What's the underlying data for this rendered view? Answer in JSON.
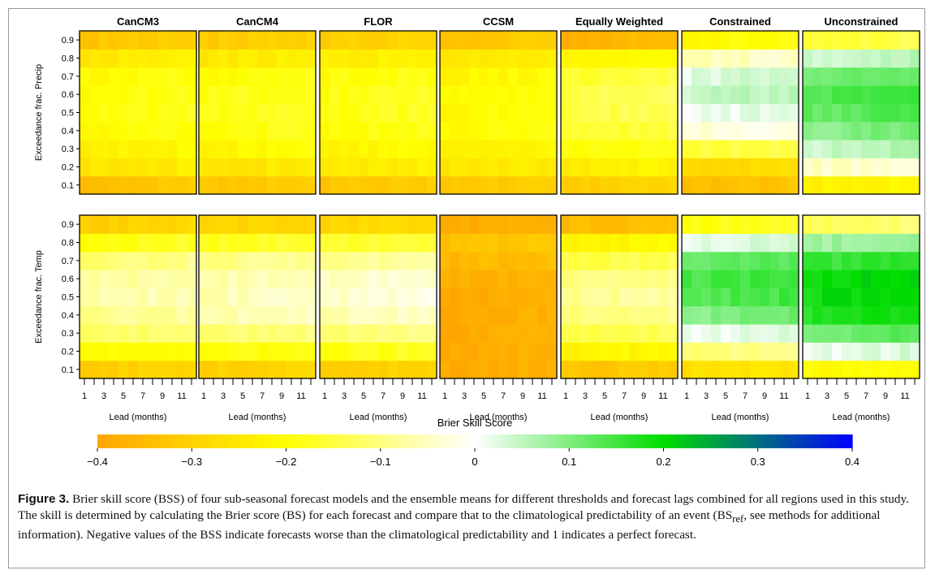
{
  "chart_data": {
    "type": "heatmap",
    "panel_titles": [
      "CanCM3",
      "CanCM4",
      "FLOR",
      "CCSM",
      "Equally Weighted",
      "Constrained",
      "Unconstrained"
    ],
    "row_ylabels": [
      "Exceedance frac. Precip",
      "Exceedance frac. Temp"
    ],
    "xlabel": "Lead (months)",
    "x_tick_labels": [
      "1",
      "3",
      "5",
      "7",
      "9",
      "11"
    ],
    "x_values": [
      1,
      2,
      3,
      4,
      5,
      6,
      7,
      8,
      9,
      10,
      11,
      12
    ],
    "y_tick_labels": [
      "0.1",
      "0.2",
      "0.3",
      "0.4",
      "0.5",
      "0.6",
      "0.7",
      "0.8",
      "0.9"
    ],
    "y_values": [
      0.1,
      0.2,
      0.3,
      0.4,
      0.5,
      0.6,
      0.7,
      0.8,
      0.9
    ],
    "colorbar": {
      "title": "Brier Skill Score",
      "range": [
        -0.4,
        0.4
      ],
      "tick_labels": [
        "−0.4",
        "−0.3",
        "−0.2",
        "−0.1",
        "0",
        "0.1",
        "0.2",
        "0.3",
        "0.4"
      ],
      "tick_values": [
        -0.4,
        -0.3,
        -0.2,
        -0.1,
        0,
        0.1,
        0.2,
        0.3,
        0.4
      ],
      "colors": [
        "#ffa500",
        "#ffff00",
        "#ffffff",
        "#00dd00",
        "#0000ff"
      ]
    },
    "panels": [
      {
        "model": "CanCM3",
        "variable": "Precip",
        "values_by_threshold": [
          -0.33,
          -0.25,
          -0.22,
          -0.2,
          -0.19,
          -0.19,
          -0.2,
          -0.24,
          -0.32
        ]
      },
      {
        "model": "CanCM4",
        "variable": "Precip",
        "values_by_threshold": [
          -0.32,
          -0.25,
          -0.21,
          -0.19,
          -0.18,
          -0.18,
          -0.2,
          -0.24,
          -0.31
        ]
      },
      {
        "model": "FLOR",
        "variable": "Precip",
        "values_by_threshold": [
          -0.32,
          -0.24,
          -0.21,
          -0.19,
          -0.18,
          -0.18,
          -0.19,
          -0.23,
          -0.3
        ]
      },
      {
        "model": "CCSM",
        "variable": "Precip",
        "values_by_threshold": [
          -0.32,
          -0.25,
          -0.22,
          -0.2,
          -0.2,
          -0.2,
          -0.21,
          -0.25,
          -0.32
        ]
      },
      {
        "model": "Equally Weighted",
        "variable": "Precip",
        "values_by_threshold": [
          -0.3,
          -0.23,
          -0.19,
          -0.16,
          -0.14,
          -0.14,
          -0.16,
          -0.22,
          -0.36
        ]
      },
      {
        "model": "Constrained",
        "variable": "Precip",
        "values_by_threshold": [
          -0.34,
          -0.28,
          -0.15,
          -0.03,
          0.02,
          0.05,
          0.03,
          -0.05,
          -0.2
        ]
      },
      {
        "model": "Unconstrained",
        "variable": "Precip",
        "values_by_threshold": [
          -0.22,
          -0.04,
          0.05,
          0.1,
          0.13,
          0.14,
          0.12,
          0.05,
          -0.15
        ]
      },
      {
        "model": "CanCM3",
        "variable": "Temp",
        "values_by_threshold": [
          -0.3,
          -0.2,
          -0.12,
          -0.08,
          -0.06,
          -0.07,
          -0.1,
          -0.18,
          -0.3
        ]
      },
      {
        "model": "CanCM4",
        "variable": "Temp",
        "values_by_threshold": [
          -0.3,
          -0.19,
          -0.11,
          -0.06,
          -0.05,
          -0.06,
          -0.09,
          -0.17,
          -0.29
        ]
      },
      {
        "model": "FLOR",
        "variable": "Temp",
        "values_by_threshold": [
          -0.3,
          -0.18,
          -0.1,
          -0.05,
          -0.03,
          -0.04,
          -0.08,
          -0.16,
          -0.28
        ]
      },
      {
        "model": "CCSM",
        "variable": "Temp",
        "values_by_threshold": [
          -0.38,
          -0.38,
          -0.38,
          -0.38,
          -0.38,
          -0.37,
          -0.35,
          -0.33,
          -0.38
        ]
      },
      {
        "model": "Equally Weighted",
        "variable": "Temp",
        "values_by_threshold": [
          -0.32,
          -0.22,
          -0.14,
          -0.1,
          -0.08,
          -0.1,
          -0.14,
          -0.22,
          -0.34
        ]
      },
      {
        "model": "Constrained",
        "variable": "Temp",
        "values_by_threshold": [
          -0.26,
          -0.1,
          0.02,
          0.1,
          0.14,
          0.15,
          0.12,
          0.03,
          -0.18
        ]
      },
      {
        "model": "Unconstrained",
        "variable": "Temp",
        "values_by_threshold": [
          -0.2,
          0.02,
          0.12,
          0.18,
          0.2,
          0.2,
          0.16,
          0.08,
          -0.12
        ]
      }
    ]
  },
  "caption": {
    "label": "Figure 3.",
    "text": "Brier skill score (BSS) of four sub-seasonal forecast models and the ensemble means for different thresholds and forecast lags combined for all regions used in this study. The skill is determined by calculating the Brier score (BS) for each forecast and compare that to the climatological predictability of an event (",
    "bs": "BS",
    "ref": "ref",
    "text2": ", see methods for additional information). Negative values of the BSS indicate forecasts worse than the climatological predictability and 1 indicates a perfect forecast."
  }
}
